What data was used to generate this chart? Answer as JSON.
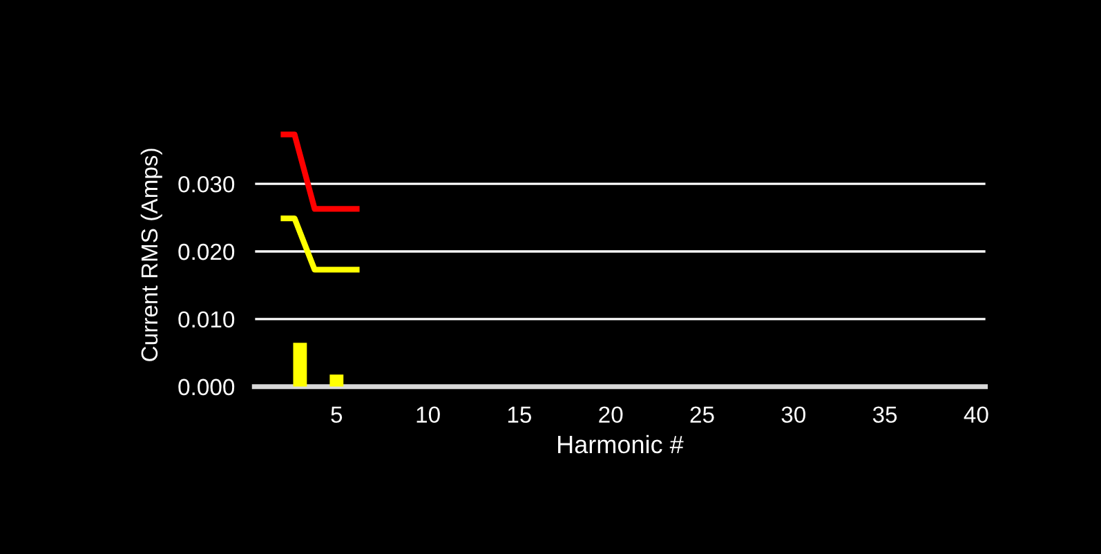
{
  "chart_data": {
    "type": "bar",
    "xlabel": "Harmonic #",
    "ylabel": "Current RMS (Amps)",
    "xlim": [
      0.5,
      40.5
    ],
    "xticks": [
      5,
      10,
      15,
      20,
      25,
      30,
      35,
      40
    ],
    "ylim": [
      0,
      0.039
    ],
    "yticks": [
      {
        "value": 0,
        "label": "0.000"
      },
      {
        "value": 0.01,
        "label": "0.010"
      },
      {
        "value": 0.02,
        "label": "0.020"
      },
      {
        "value": 0.03,
        "label": "0.030"
      }
    ],
    "grid": "y",
    "legend": false,
    "series": [
      {
        "color": "#ffff00",
        "x": [
          3,
          5
        ],
        "values": [
          0.0065,
          0.0018
        ]
      },
      {
        "type": "line",
        "color": "#ff0000",
        "x": [
          2.1,
          2.7,
          3.8,
          6.1
        ],
        "values": [
          0.0373,
          0.0373,
          0.0263,
          0.0263
        ]
      },
      {
        "type": "line",
        "color": "#ffff00",
        "x": [
          2.1,
          2.7,
          3.8,
          6.1
        ],
        "values": [
          0.0249,
          0.0249,
          0.0173,
          0.0173
        ]
      }
    ]
  }
}
